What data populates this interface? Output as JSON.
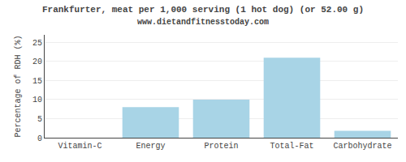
{
  "chart_data": {
    "type": "bar",
    "title": "Frankfurter, meat per 1,000 serving (1 hot dog) (or 52.00 g)",
    "subtitle": "www.dietandfitnesstoday.com",
    "ylabel": "Percentage of RDH (%)",
    "categories": [
      "Vitamin-C",
      "Energy",
      "Protein",
      "Total-Fat",
      "Carbohydrate"
    ],
    "values": [
      0.0,
      8.0,
      10.0,
      21.0,
      1.8
    ],
    "color": "#a8d4e6",
    "ylim": [
      0,
      27
    ],
    "yticks": [
      0,
      5,
      10,
      15,
      20,
      25
    ],
    "grid": true
  }
}
